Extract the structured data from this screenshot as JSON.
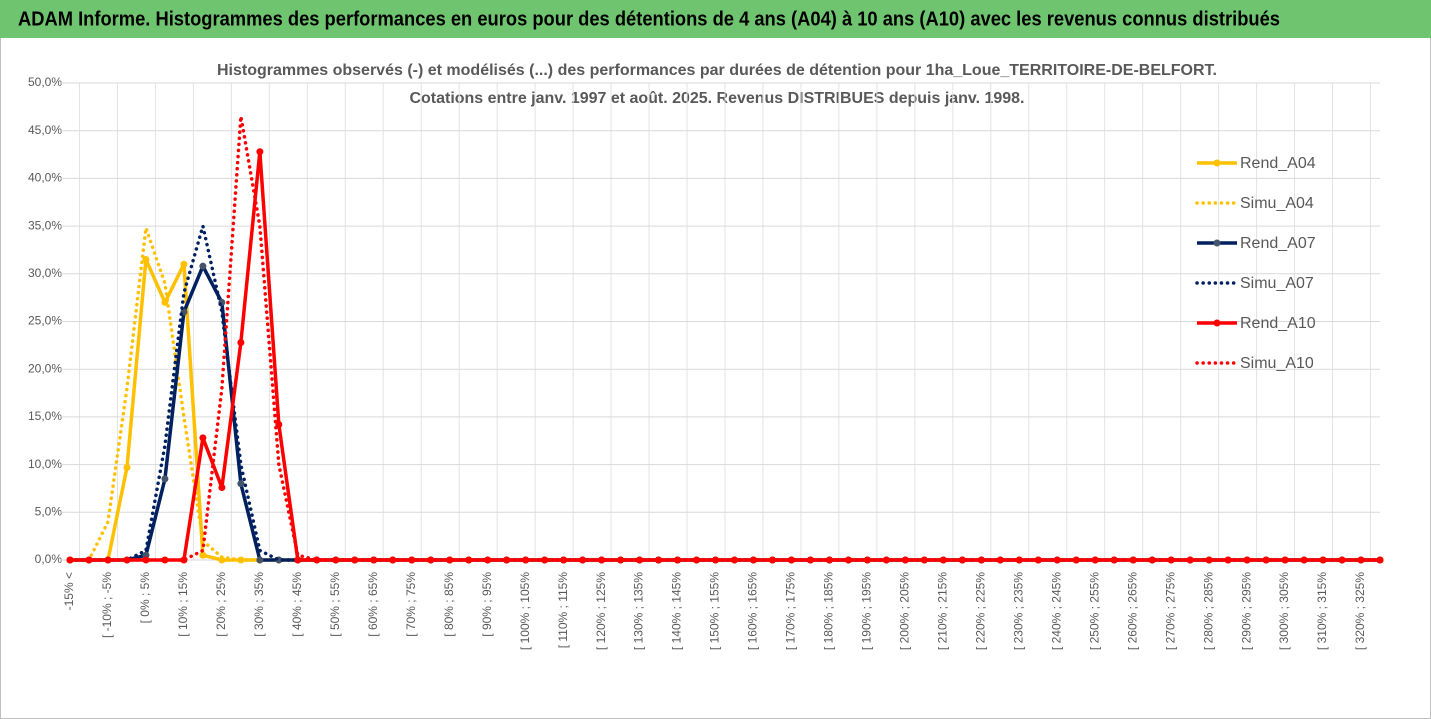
{
  "header": {
    "title": "ADAM Informe. Histogrammes des performances en euros pour des détentions de 4 ans (A04) à 10 ans (A10) avec les revenus connus distribués"
  },
  "chart_data": {
    "type": "line",
    "title": [
      "Histogrammes observés (-) et modélisés (...) des performances par durées de détention pour 1ha_Loue_TERRITOIRE-DE-BELFORT.",
      "Cotations entre janv. 1997 et août. 2025. Revenus DISTRIBUES depuis janv. 1998."
    ],
    "categories": [
      "-15% <",
      null,
      "[ -10% ; -5%",
      null,
      "[ 0% ; 5%",
      null,
      "[ 10% ; 15%",
      null,
      "[ 20% ; 25%",
      null,
      "[ 30% ; 35%",
      null,
      "[ 40% ; 45%",
      null,
      "[ 50% ; 55%",
      null,
      "[ 60% ; 65%",
      null,
      "[ 70% ; 75%",
      null,
      "[ 80% ; 85%",
      null,
      "[ 90% ; 95%",
      null,
      "[ 100% ; 105%",
      null,
      "[ 110% ; 115%",
      null,
      "[ 120% ; 125%",
      null,
      "[ 130% ; 135%",
      null,
      "[ 140% ; 145%",
      null,
      "[ 150% ; 155%",
      null,
      "[ 160% ; 165%",
      null,
      "[ 170% ; 175%",
      null,
      "[ 180% ; 185%",
      null,
      "[ 190% ; 195%",
      null,
      "[ 200% ; 205%",
      null,
      "[ 210% ; 215%",
      null,
      "[ 220% ; 225%",
      null,
      "[ 230% ; 235%",
      null,
      "[ 240% ; 245%",
      null,
      "[ 250% ; 255%",
      null,
      "[ 260% ; 265%",
      null,
      "[ 270% ; 275%",
      null,
      "[ 280% ; 285%",
      null,
      "[ 290% ; 295%",
      null,
      "[ 300% ; 305%",
      null,
      "[ 310% ; 315%",
      null,
      "[ 320% ; 325%",
      null
    ],
    "series": [
      {
        "name": "Rend_A04",
        "color": "#FFC000",
        "line_style": "solid",
        "markers": true,
        "values": [
          0,
          0,
          0,
          9.7,
          31.5,
          27,
          31,
          0.5,
          0,
          0,
          0,
          0,
          0,
          0,
          0,
          0,
          0,
          0,
          0,
          0,
          0,
          0,
          0,
          0,
          0,
          0,
          0,
          0,
          0,
          0,
          0,
          0,
          0,
          0,
          0,
          0,
          0,
          0,
          0,
          0,
          0,
          0,
          0,
          0,
          0,
          0,
          0,
          0,
          0,
          0,
          0,
          0,
          0,
          0,
          0,
          0,
          0,
          0,
          0,
          0,
          0,
          0,
          0,
          0,
          0,
          0,
          0,
          0,
          0,
          0
        ]
      },
      {
        "name": "Simu_A04",
        "color": "#FFC000",
        "line_style": "dotted",
        "markers": false,
        "values": [
          0,
          0,
          4,
          18,
          34.8,
          29,
          15,
          2,
          0.3,
          0,
          0,
          0,
          0,
          0,
          0,
          0,
          0,
          0,
          0,
          0,
          0,
          0,
          0,
          0,
          0,
          0,
          0,
          0,
          0,
          0,
          0,
          0,
          0,
          0,
          0,
          0,
          0,
          0,
          0,
          0,
          0,
          0,
          0,
          0,
          0,
          0,
          0,
          0,
          0,
          0,
          0,
          0,
          0,
          0,
          0,
          0,
          0,
          0,
          0,
          0,
          0,
          0,
          0,
          0,
          0,
          0,
          0,
          0,
          0,
          0
        ]
      },
      {
        "name": "Rend_A07",
        "color": "#002060",
        "line_style": "solid",
        "markers": true,
        "values": [
          0,
          0,
          0,
          0,
          0.5,
          8.5,
          26,
          30.8,
          27,
          8,
          0,
          0,
          0,
          0,
          0,
          0,
          0,
          0,
          0,
          0,
          0,
          0,
          0,
          0,
          0,
          0,
          0,
          0,
          0,
          0,
          0,
          0,
          0,
          0,
          0,
          0,
          0,
          0,
          0,
          0,
          0,
          0,
          0,
          0,
          0,
          0,
          0,
          0,
          0,
          0,
          0,
          0,
          0,
          0,
          0,
          0,
          0,
          0,
          0,
          0,
          0,
          0,
          0,
          0,
          0,
          0,
          0,
          0,
          0,
          0
        ]
      },
      {
        "name": "Simu_A07",
        "color": "#002060",
        "line_style": "dotted",
        "markers": false,
        "values": [
          0,
          0,
          0,
          0,
          1,
          12,
          28,
          35,
          26,
          10,
          1,
          0,
          0,
          0,
          0,
          0,
          0,
          0,
          0,
          0,
          0,
          0,
          0,
          0,
          0,
          0,
          0,
          0,
          0,
          0,
          0,
          0,
          0,
          0,
          0,
          0,
          0,
          0,
          0,
          0,
          0,
          0,
          0,
          0,
          0,
          0,
          0,
          0,
          0,
          0,
          0,
          0,
          0,
          0,
          0,
          0,
          0,
          0,
          0,
          0,
          0,
          0,
          0,
          0,
          0,
          0,
          0,
          0,
          0,
          0
        ]
      },
      {
        "name": "Rend_A10",
        "color": "#FF0000",
        "line_style": "solid",
        "markers": true,
        "values": [
          0,
          0,
          0,
          0,
          0,
          0,
          0,
          12.8,
          7.6,
          22.8,
          42.8,
          14.2,
          0,
          0,
          0,
          0,
          0,
          0,
          0,
          0,
          0,
          0,
          0,
          0,
          0,
          0,
          0,
          0,
          0,
          0,
          0,
          0,
          0,
          0,
          0,
          0,
          0,
          0,
          0,
          0,
          0,
          0,
          0,
          0,
          0,
          0,
          0,
          0,
          0,
          0,
          0,
          0,
          0,
          0,
          0,
          0,
          0,
          0,
          0,
          0,
          0,
          0,
          0,
          0,
          0,
          0,
          0,
          0,
          0,
          0
        ]
      },
      {
        "name": "Simu_A10",
        "color": "#FF0000",
        "line_style": "dotted",
        "markers": false,
        "values": [
          0,
          0,
          0,
          0,
          0,
          0,
          0,
          1,
          18,
          46.5,
          35,
          10,
          0.5,
          0,
          0,
          0,
          0,
          0,
          0,
          0,
          0,
          0,
          0,
          0,
          0,
          0,
          0,
          0,
          0,
          0,
          0,
          0,
          0,
          0,
          0,
          0,
          0,
          0,
          0,
          0,
          0,
          0,
          0,
          0,
          0,
          0,
          0,
          0,
          0,
          0,
          0,
          0,
          0,
          0,
          0,
          0,
          0,
          0,
          0,
          0,
          0,
          0,
          0,
          0,
          0,
          0,
          0,
          0,
          0,
          0
        ]
      }
    ],
    "ylim": [
      0,
      50
    ],
    "yticks": [
      {
        "value": 0,
        "label": "0,0%"
      },
      {
        "value": 5,
        "label": "5,0%"
      },
      {
        "value": 10,
        "label": "10,0%"
      },
      {
        "value": 15,
        "label": "15,0%"
      },
      {
        "value": 20,
        "label": "20,0%"
      },
      {
        "value": 25,
        "label": "25,0%"
      },
      {
        "value": 30,
        "label": "30,0%"
      },
      {
        "value": 35,
        "label": "35,0%"
      },
      {
        "value": 40,
        "label": "40,0%"
      },
      {
        "value": 45,
        "label": "45,0%"
      },
      {
        "value": 50,
        "label": "50,0%"
      }
    ],
    "grid": true,
    "legend": "right"
  }
}
